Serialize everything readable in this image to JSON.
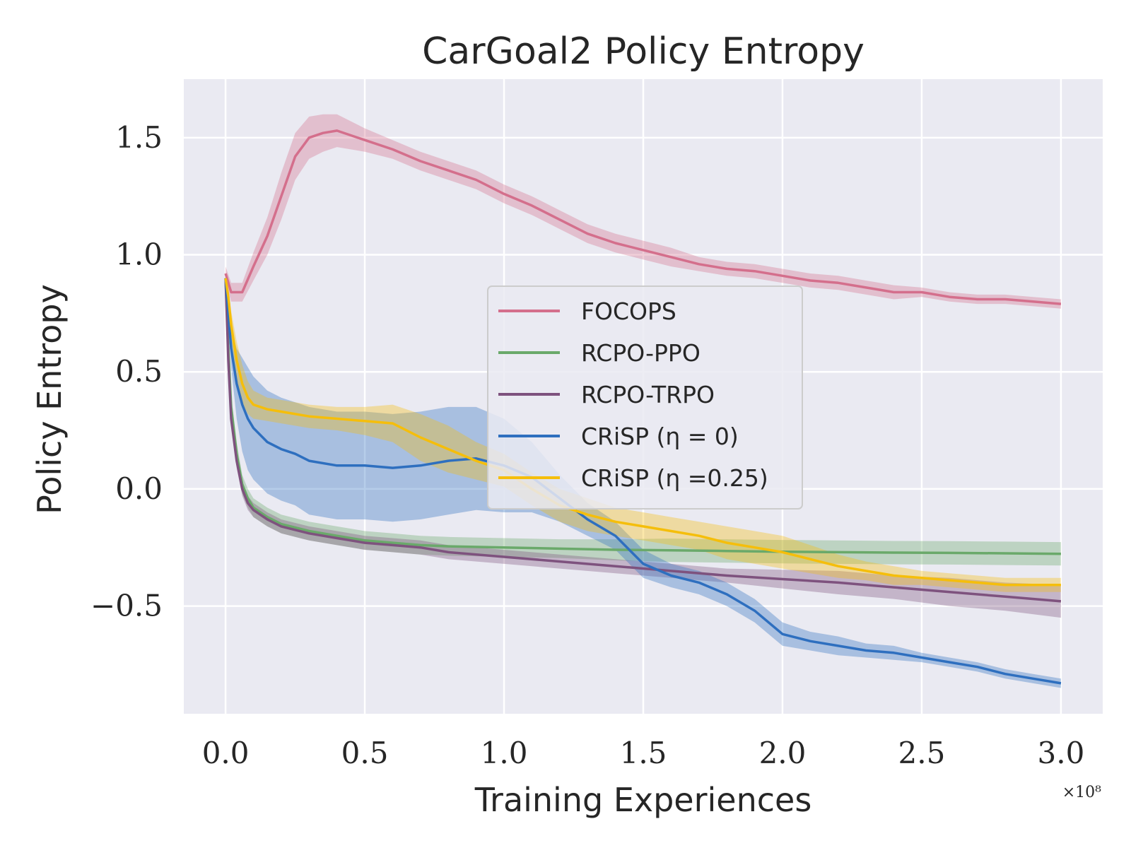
{
  "chart_data": {
    "type": "line",
    "title": "CarGoal2 Policy Entropy",
    "xlabel": "Training Experiences",
    "ylabel": "Policy Entropy",
    "x_offset_label": "×10⁸",
    "xlim": [
      -0.15,
      3.15
    ],
    "ylim": [
      -0.96,
      1.75
    ],
    "x_ticks": [
      0.0,
      0.5,
      1.0,
      1.5,
      2.0,
      2.5,
      3.0
    ],
    "x_tick_labels": [
      "0.0",
      "0.5",
      "1.0",
      "1.5",
      "2.0",
      "2.5",
      "3.0"
    ],
    "y_ticks": [
      1.5,
      1.0,
      0.5,
      0.0,
      -0.5
    ],
    "y_tick_labels": [
      "1.5",
      "1.0",
      "0.5",
      "0.0",
      "−0.5"
    ],
    "grid": true,
    "legend_position": "center-right",
    "series": [
      {
        "name": "FOCOPS",
        "color": "#d46f8c",
        "x": [
          0.0,
          0.02,
          0.06,
          0.1,
          0.15,
          0.2,
          0.25,
          0.3,
          0.35,
          0.4,
          0.5,
          0.6,
          0.7,
          0.8,
          0.9,
          1.0,
          1.1,
          1.2,
          1.3,
          1.4,
          1.5,
          1.6,
          1.7,
          1.8,
          1.9,
          2.0,
          2.1,
          2.2,
          2.3,
          2.4,
          2.5,
          2.6,
          2.7,
          2.8,
          2.9,
          3.0
        ],
        "y": [
          0.92,
          0.84,
          0.84,
          0.95,
          1.08,
          1.25,
          1.42,
          1.5,
          1.52,
          1.53,
          1.49,
          1.45,
          1.4,
          1.36,
          1.32,
          1.26,
          1.21,
          1.15,
          1.09,
          1.05,
          1.02,
          0.99,
          0.96,
          0.94,
          0.93,
          0.91,
          0.89,
          0.88,
          0.86,
          0.84,
          0.84,
          0.82,
          0.81,
          0.81,
          0.8,
          0.79
        ],
        "band": [
          0.03,
          0.04,
          0.04,
          0.06,
          0.08,
          0.1,
          0.1,
          0.09,
          0.08,
          0.07,
          0.05,
          0.04,
          0.04,
          0.04,
          0.04,
          0.04,
          0.04,
          0.04,
          0.04,
          0.04,
          0.04,
          0.04,
          0.03,
          0.03,
          0.03,
          0.03,
          0.03,
          0.03,
          0.03,
          0.03,
          0.02,
          0.02,
          0.02,
          0.02,
          0.02,
          0.02
        ]
      },
      {
        "name": "RCPO-PPO",
        "color": "#6aa96a",
        "x": [
          0.0,
          0.01,
          0.02,
          0.04,
          0.06,
          0.08,
          0.1,
          0.15,
          0.2,
          0.3,
          0.4,
          0.5,
          0.6,
          0.7,
          0.8,
          1.0,
          1.2,
          1.4,
          1.6,
          1.8,
          2.0,
          2.2,
          2.4,
          2.6,
          2.8,
          3.0
        ],
        "y": [
          0.9,
          0.6,
          0.35,
          0.15,
          0.02,
          -0.04,
          -0.08,
          -0.12,
          -0.15,
          -0.18,
          -0.2,
          -0.22,
          -0.23,
          -0.24,
          -0.245,
          -0.25,
          -0.255,
          -0.26,
          -0.262,
          -0.265,
          -0.268,
          -0.27,
          -0.272,
          -0.273,
          -0.275,
          -0.277
        ],
        "band": [
          0.02,
          0.04,
          0.05,
          0.05,
          0.04,
          0.04,
          0.04,
          0.04,
          0.04,
          0.04,
          0.04,
          0.04,
          0.04,
          0.04,
          0.04,
          0.04,
          0.04,
          0.045,
          0.05,
          0.05,
          0.05,
          0.05,
          0.05,
          0.05,
          0.05,
          0.05
        ]
      },
      {
        "name": "RCPO-TRPO",
        "color": "#7e527e",
        "x": [
          0.0,
          0.01,
          0.02,
          0.04,
          0.06,
          0.08,
          0.1,
          0.15,
          0.2,
          0.3,
          0.4,
          0.5,
          0.6,
          0.7,
          0.8,
          1.0,
          1.2,
          1.4,
          1.6,
          1.8,
          2.0,
          2.2,
          2.4,
          2.6,
          2.8,
          3.0
        ],
        "y": [
          0.9,
          0.55,
          0.3,
          0.12,
          0.0,
          -0.06,
          -0.09,
          -0.13,
          -0.16,
          -0.19,
          -0.21,
          -0.23,
          -0.24,
          -0.25,
          -0.27,
          -0.29,
          -0.31,
          -0.33,
          -0.35,
          -0.37,
          -0.385,
          -0.4,
          -0.42,
          -0.44,
          -0.46,
          -0.48
        ],
        "band": [
          0.02,
          0.03,
          0.03,
          0.03,
          0.03,
          0.03,
          0.03,
          0.03,
          0.03,
          0.03,
          0.03,
          0.03,
          0.03,
          0.03,
          0.03,
          0.03,
          0.03,
          0.03,
          0.03,
          0.03,
          0.04,
          0.05,
          0.05,
          0.06,
          0.06,
          0.07
        ]
      },
      {
        "name": "CRiSP (η = 0)",
        "color": "#2e6fbf",
        "x": [
          0.0,
          0.01,
          0.02,
          0.04,
          0.06,
          0.08,
          0.1,
          0.15,
          0.2,
          0.25,
          0.3,
          0.4,
          0.5,
          0.6,
          0.7,
          0.8,
          0.9,
          1.0,
          1.1,
          1.2,
          1.3,
          1.4,
          1.5,
          1.6,
          1.7,
          1.8,
          1.9,
          2.0,
          2.1,
          2.2,
          2.3,
          2.4,
          2.5,
          2.6,
          2.7,
          2.8,
          2.9,
          3.0
        ],
        "y": [
          0.9,
          0.75,
          0.6,
          0.45,
          0.36,
          0.3,
          0.26,
          0.2,
          0.17,
          0.15,
          0.12,
          0.1,
          0.1,
          0.09,
          0.1,
          0.12,
          0.13,
          0.1,
          0.05,
          -0.04,
          -0.13,
          -0.2,
          -0.32,
          -0.37,
          -0.4,
          -0.45,
          -0.52,
          -0.62,
          -0.65,
          -0.67,
          -0.69,
          -0.7,
          -0.72,
          -0.74,
          -0.76,
          -0.79,
          -0.81,
          -0.83
        ],
        "band": [
          0.02,
          0.04,
          0.08,
          0.15,
          0.2,
          0.22,
          0.22,
          0.22,
          0.22,
          0.22,
          0.23,
          0.23,
          0.23,
          0.23,
          0.23,
          0.23,
          0.22,
          0.2,
          0.15,
          0.1,
          0.07,
          0.06,
          0.06,
          0.05,
          0.05,
          0.05,
          0.05,
          0.05,
          0.04,
          0.04,
          0.03,
          0.03,
          0.02,
          0.02,
          0.02,
          0.02,
          0.02,
          0.02
        ]
      },
      {
        "name": "CRiSP (η =0.25)",
        "color": "#f5be0b",
        "x": [
          0.0,
          0.01,
          0.02,
          0.04,
          0.06,
          0.08,
          0.1,
          0.15,
          0.2,
          0.3,
          0.4,
          0.5,
          0.6,
          0.7,
          0.8,
          0.9,
          1.0,
          1.1,
          1.2,
          1.3,
          1.4,
          1.5,
          1.6,
          1.7,
          1.8,
          1.9,
          2.0,
          2.1,
          2.2,
          2.3,
          2.4,
          2.5,
          2.6,
          2.7,
          2.8,
          2.9,
          3.0
        ],
        "y": [
          0.9,
          0.82,
          0.7,
          0.55,
          0.45,
          0.39,
          0.36,
          0.34,
          0.33,
          0.31,
          0.3,
          0.29,
          0.28,
          0.22,
          0.17,
          0.12,
          0.08,
          0.0,
          -0.07,
          -0.11,
          -0.14,
          -0.16,
          -0.18,
          -0.2,
          -0.23,
          -0.25,
          -0.27,
          -0.3,
          -0.33,
          -0.35,
          -0.37,
          -0.38,
          -0.39,
          -0.4,
          -0.41,
          -0.41,
          -0.41
        ],
        "band": [
          0.02,
          0.04,
          0.06,
          0.08,
          0.08,
          0.07,
          0.06,
          0.05,
          0.05,
          0.05,
          0.05,
          0.06,
          0.08,
          0.1,
          0.1,
          0.08,
          0.07,
          0.07,
          0.07,
          0.07,
          0.06,
          0.06,
          0.06,
          0.06,
          0.07,
          0.07,
          0.07,
          0.06,
          0.05,
          0.04,
          0.04,
          0.03,
          0.03,
          0.03,
          0.03,
          0.03,
          0.03
        ]
      }
    ]
  }
}
